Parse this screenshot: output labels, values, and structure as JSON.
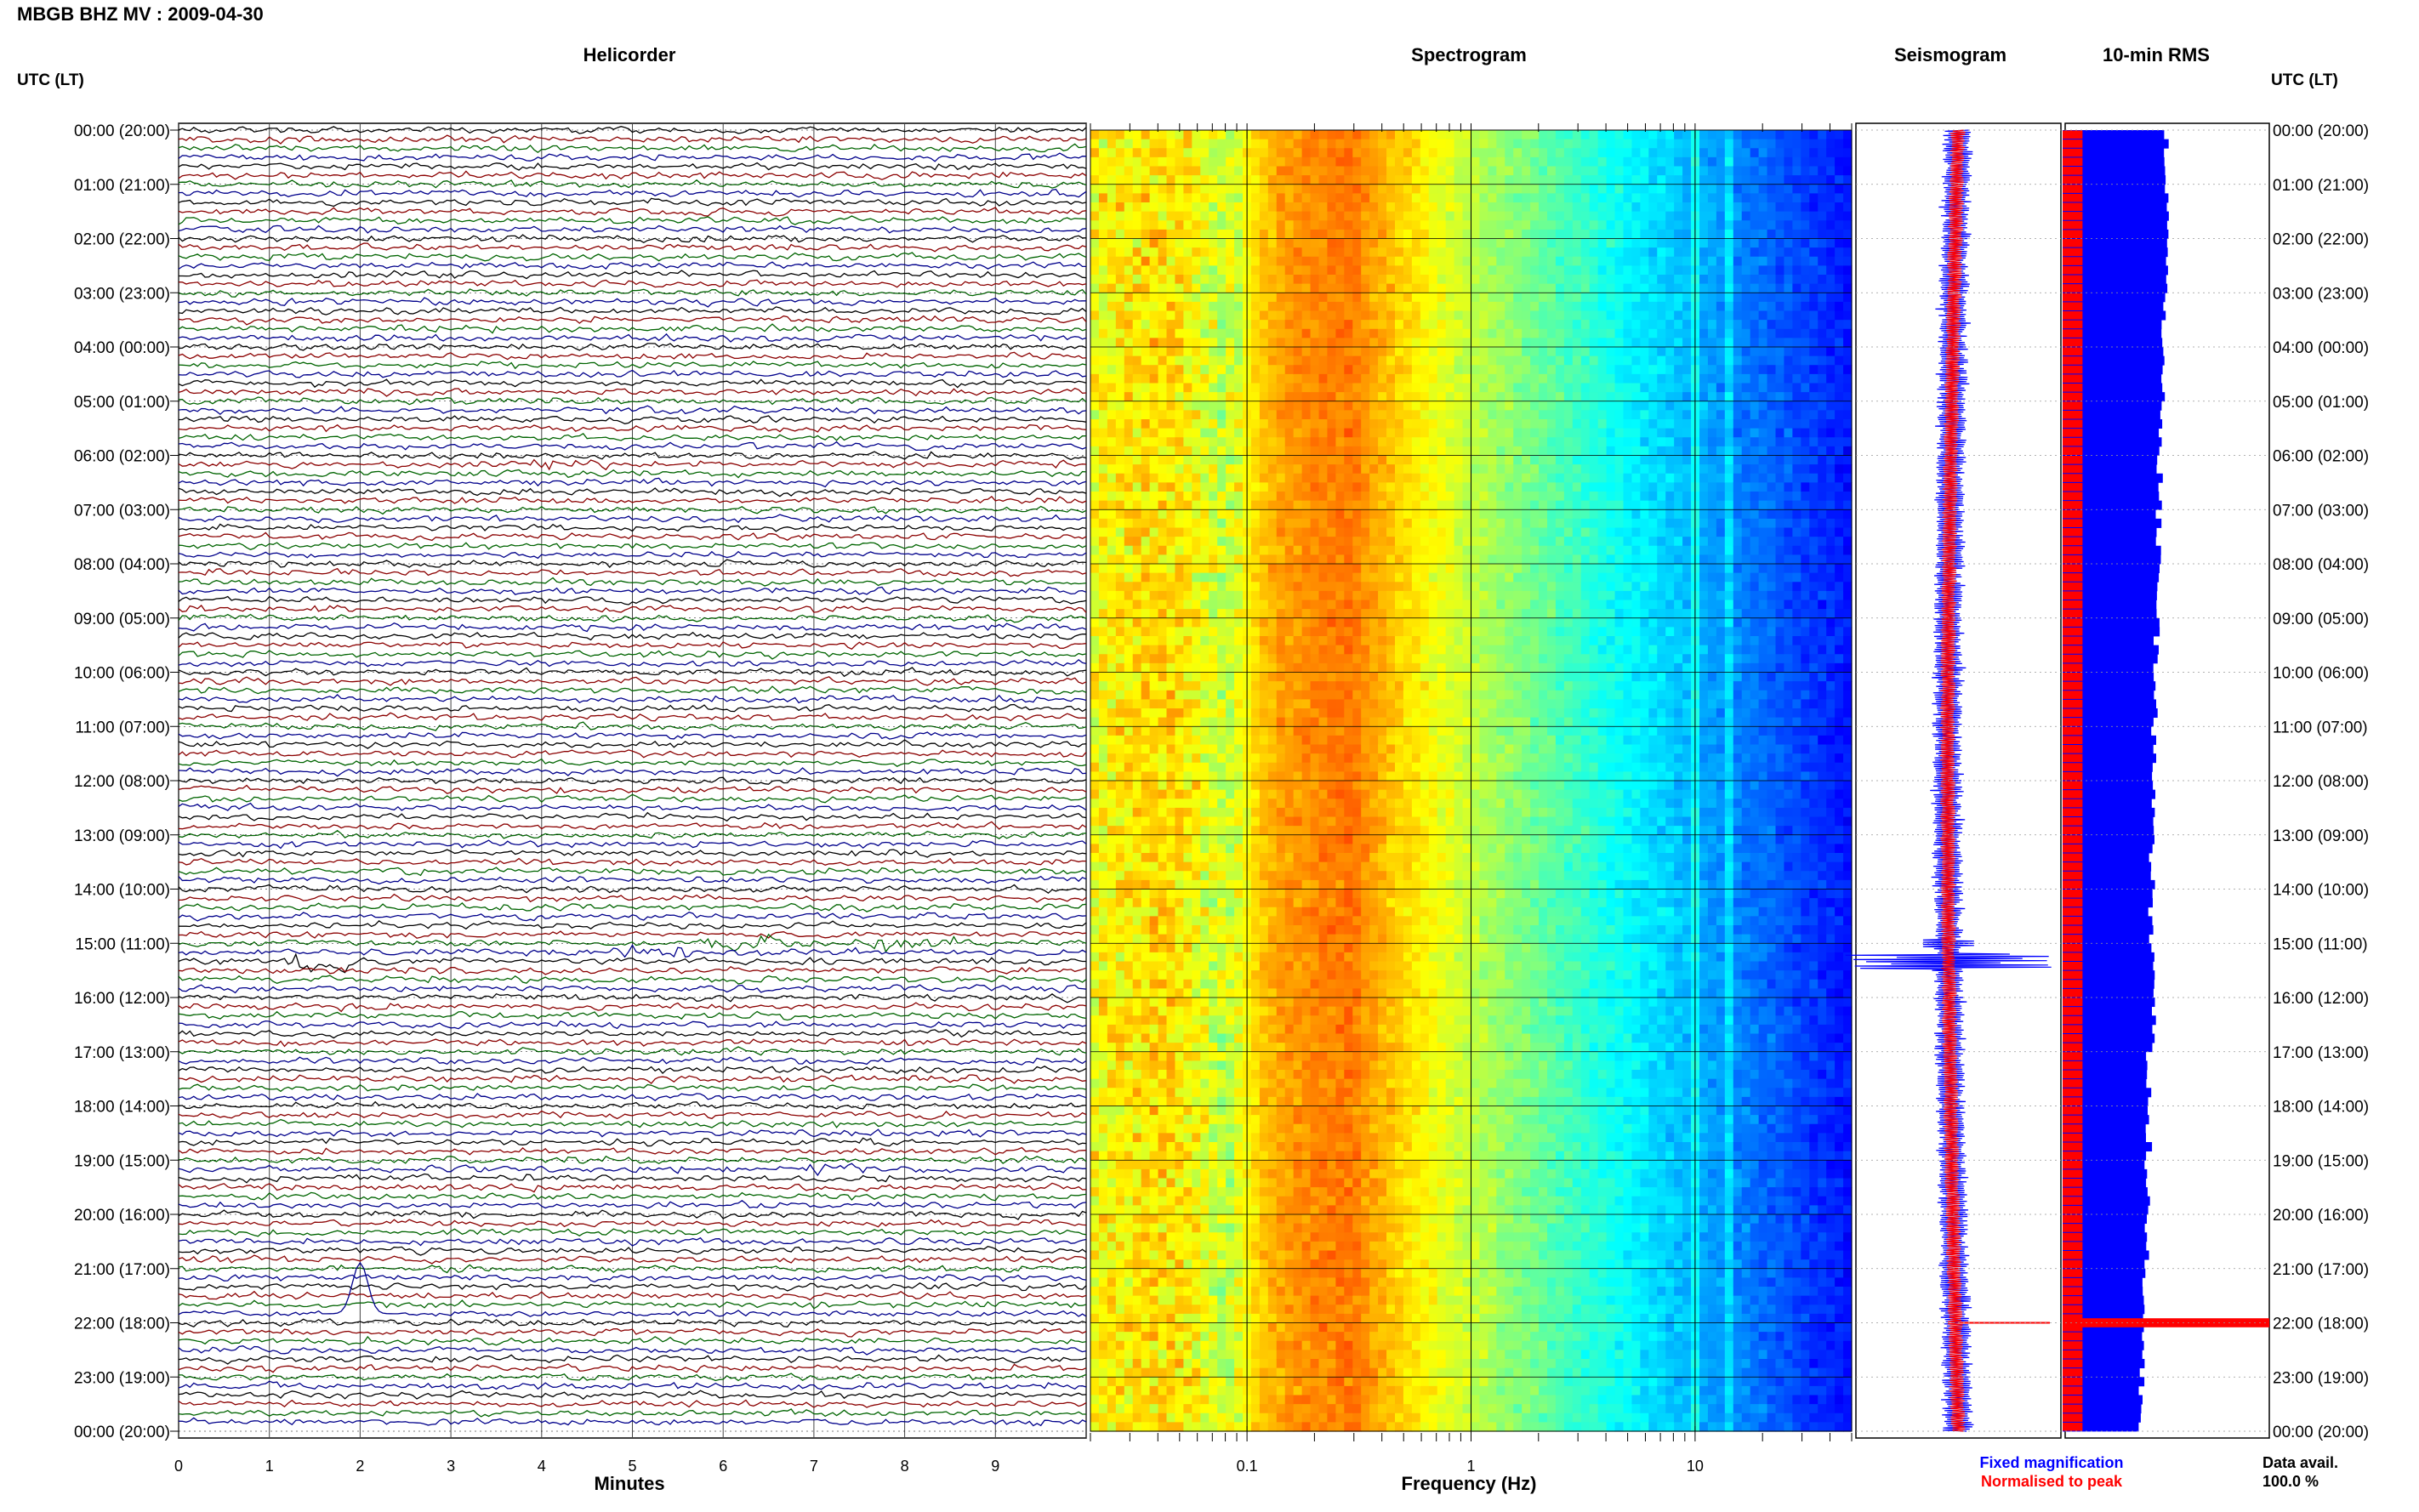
{
  "header": {
    "station_title": "MBGB BHZ MV : 2009-04-30"
  },
  "panels": {
    "helicorder_title": "Helicorder",
    "spectrogram_title": "Spectrogram",
    "seismogram_title": "Seismogram",
    "rms_title": "10-min RMS"
  },
  "axes": {
    "left_axis_label": "UTC (LT)",
    "right_axis_label": "UTC (LT)",
    "helicorder_xlabel": "Minutes",
    "spectrogram_xlabel": "Frequency (Hz)",
    "hour_ticks": [
      "00:00 (20:00)",
      "01:00 (21:00)",
      "02:00 (22:00)",
      "03:00 (23:00)",
      "04:00 (00:00)",
      "05:00 (01:00)",
      "06:00 (02:00)",
      "07:00 (03:00)",
      "08:00 (04:00)",
      "09:00 (05:00)",
      "10:00 (06:00)",
      "11:00 (07:00)",
      "12:00 (08:00)",
      "13:00 (09:00)",
      "14:00 (10:00)",
      "15:00 (11:00)",
      "16:00 (12:00)",
      "17:00 (13:00)",
      "18:00 (14:00)",
      "19:00 (15:00)",
      "20:00 (16:00)",
      "21:00 (17:00)",
      "22:00 (18:00)",
      "23:00 (19:00)",
      "00:00 (20:00)"
    ],
    "minute_ticks": [
      "0",
      "1",
      "2",
      "3",
      "4",
      "5",
      "6",
      "7",
      "8",
      "9"
    ],
    "frequency_ticks": [
      "0.1",
      "1",
      "10"
    ]
  },
  "legend": {
    "fixed_magnification": "Fixed magnification",
    "normalised_to_peak": "Normalised to peak",
    "data_avail_label": "Data avail.",
    "data_avail_value": "100.0 %"
  },
  "colors": {
    "trace_black": "#000000",
    "trace_red": "#8b0000",
    "trace_green": "#006400",
    "trace_blue": "#00008b",
    "fixed_magnification": "#0000ff",
    "normalised_to_peak": "#ff0000",
    "grid": "#999999"
  },
  "chart_data": [
    {
      "type": "line",
      "panel": "helicorder",
      "title": "Helicorder",
      "xlabel": "Minutes",
      "xlim": [
        0,
        10
      ],
      "ylim_hours_utc": [
        0,
        24
      ],
      "rows_per_hour": 6,
      "trace_color_cycle": [
        "black",
        "red",
        "green",
        "blue"
      ],
      "events": [
        {
          "start_utc": "06:10",
          "minute": 4.3,
          "note": "small burst",
          "trace": "green"
        },
        {
          "start_utc": "15:00",
          "minute": 8.1,
          "note": "burst",
          "trace": "red"
        },
        {
          "start_utc": "15:00",
          "minute": 6.2,
          "note": "burst",
          "trace": "blue"
        },
        {
          "start_utc": "15:10",
          "minute": 5.2,
          "note": "burst",
          "trace": "green"
        },
        {
          "start_utc": "15:20",
          "minute": 1.6,
          "note": "large event",
          "trace": "red"
        },
        {
          "start_utc": "19:10",
          "minute": 7.3,
          "note": "burst",
          "trace": "black"
        },
        {
          "start_utc": "21:50",
          "minute": 2.0,
          "note": "long-period pulse",
          "trace": "black"
        }
      ]
    },
    {
      "type": "heatmap",
      "panel": "spectrogram",
      "title": "Spectrogram",
      "xlabel": "Frequency (Hz)",
      "xscale": "log",
      "xlim": [
        0.02,
        50
      ],
      "ylim_hours_utc": [
        0,
        24
      ],
      "colormap": "jet",
      "peak_band_hz": [
        0.2,
        0.45
      ],
      "notes": "energy peak in microseism band, strong blue at high frequency with faint lines near 10 Hz"
    },
    {
      "type": "line",
      "panel": "seismogram",
      "title": "Seismogram",
      "series": [
        {
          "name": "Fixed magnification",
          "color": "#0000ff"
        },
        {
          "name": "Normalised to peak",
          "color": "#ff0000"
        }
      ],
      "ylim_hours_utc": [
        0,
        24
      ],
      "events": [
        {
          "time_utc": "15:20",
          "note": "largest excursion"
        },
        {
          "time_utc": "22:00",
          "note": "normalised spike"
        }
      ]
    },
    {
      "type": "bar",
      "panel": "rms",
      "title": "10-min RMS",
      "orientation": "horizontal",
      "bins_per_hour": 6,
      "ylim_hours_utc": [
        0,
        24
      ],
      "blue_rms_hourly_relative": [
        0.94,
        0.95,
        0.94,
        0.92,
        0.91,
        0.9,
        0.88,
        0.87,
        0.86,
        0.85,
        0.83,
        0.82,
        0.81,
        0.81,
        0.8,
        0.82,
        0.83,
        0.78,
        0.78,
        0.77,
        0.76,
        0.75,
        0.72,
        0.71
      ],
      "red_rms_relative": 0.18,
      "spike": {
        "time_utc": "22:00",
        "red_rms_relative": 2.0
      },
      "data_availability_percent": 100.0
    }
  ]
}
